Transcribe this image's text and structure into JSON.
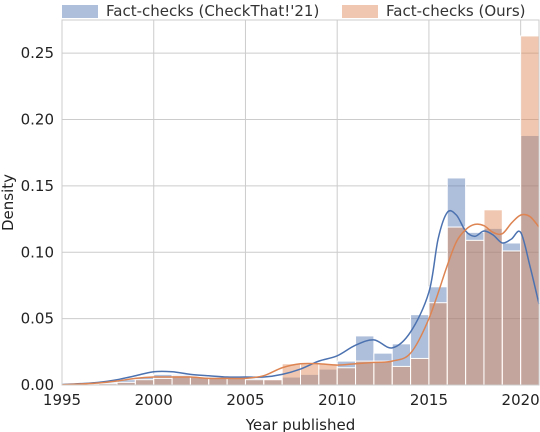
{
  "chart_data": {
    "type": "histogram",
    "xlabel": "Year published",
    "ylabel": "Density",
    "xlim": [
      1995,
      2021
    ],
    "ylim": [
      0,
      0.275
    ],
    "xticks": [
      "1995",
      "2000",
      "2005",
      "2010",
      "2015",
      "2020"
    ],
    "xtick_values": [
      1995,
      2000,
      2005,
      2010,
      2015,
      2020
    ],
    "yticks": [
      "0.00",
      "0.05",
      "0.10",
      "0.15",
      "0.20",
      "0.25"
    ],
    "ytick_values": [
      0,
      0.05,
      0.1,
      0.15,
      0.2,
      0.25
    ],
    "grid": true,
    "legend_position": "top",
    "bin_edges": [
      1995,
      1996,
      1997,
      1998,
      1999,
      2000,
      2001,
      2002,
      2003,
      2004,
      2005,
      2006,
      2007,
      2008,
      2009,
      2010,
      2011,
      2012,
      2013,
      2014,
      2015,
      2016,
      2017,
      2018,
      2019,
      2020,
      2021
    ],
    "series": [
      {
        "name": "Fact-checks (CheckThat!'21)",
        "color": "#4c72b0",
        "values": [
          0.0005,
          0.001,
          0.002,
          0.004,
          0.006,
          0.008,
          0.008,
          0.006,
          0.006,
          0.006,
          0.005,
          0.004,
          0.006,
          0.008,
          0.012,
          0.018,
          0.037,
          0.024,
          0.031,
          0.053,
          0.074,
          0.156,
          0.115,
          0.118,
          0.107,
          0.188
        ],
        "kde_x": [
          1995,
          1996,
          1997,
          1998,
          1999,
          2000,
          2001,
          2002,
          2003,
          2004,
          2005,
          2006,
          2007,
          2008,
          2009,
          2010,
          2011,
          2012,
          2013,
          2014,
          2015,
          2015.5,
          2016,
          2016.5,
          2017,
          2017.5,
          2018,
          2018.5,
          2019,
          2019.5,
          2020,
          2020.5,
          2021
        ],
        "kde_y": [
          0.0003,
          0.001,
          0.002,
          0.004,
          0.007,
          0.01,
          0.01,
          0.008,
          0.007,
          0.006,
          0.006,
          0.006,
          0.008,
          0.012,
          0.018,
          0.022,
          0.03,
          0.034,
          0.028,
          0.04,
          0.07,
          0.11,
          0.13,
          0.128,
          0.116,
          0.112,
          0.116,
          0.113,
          0.107,
          0.11,
          0.115,
          0.09,
          0.061
        ]
      },
      {
        "name": "Fact-checks (Ours)",
        "color": "#dd8452",
        "values": [
          0.0003,
          0.0008,
          0.001,
          0.002,
          0.004,
          0.005,
          0.007,
          0.006,
          0.005,
          0.005,
          0.004,
          0.004,
          0.016,
          0.016,
          0.016,
          0.013,
          0.018,
          0.018,
          0.014,
          0.02,
          0.062,
          0.119,
          0.109,
          0.132,
          0.101,
          0.263
        ],
        "kde_x": [
          1995,
          1996,
          1997,
          1998,
          1999,
          2000,
          2001,
          2002,
          2003,
          2004,
          2005,
          2006,
          2007,
          2008,
          2009,
          2010,
          2011,
          2012,
          2013,
          2014,
          2015,
          2016,
          2016.5,
          2017,
          2017.5,
          2018,
          2018.5,
          2019,
          2019.5,
          2020,
          2020.5,
          2021
        ],
        "kde_y": [
          0.0002,
          0.0008,
          0.0015,
          0.003,
          0.005,
          0.006,
          0.006,
          0.006,
          0.005,
          0.005,
          0.005,
          0.007,
          0.013,
          0.016,
          0.016,
          0.015,
          0.016,
          0.017,
          0.018,
          0.024,
          0.05,
          0.09,
          0.108,
          0.117,
          0.121,
          0.12,
          0.115,
          0.114,
          0.122,
          0.128,
          0.127,
          0.119
        ]
      }
    ]
  }
}
